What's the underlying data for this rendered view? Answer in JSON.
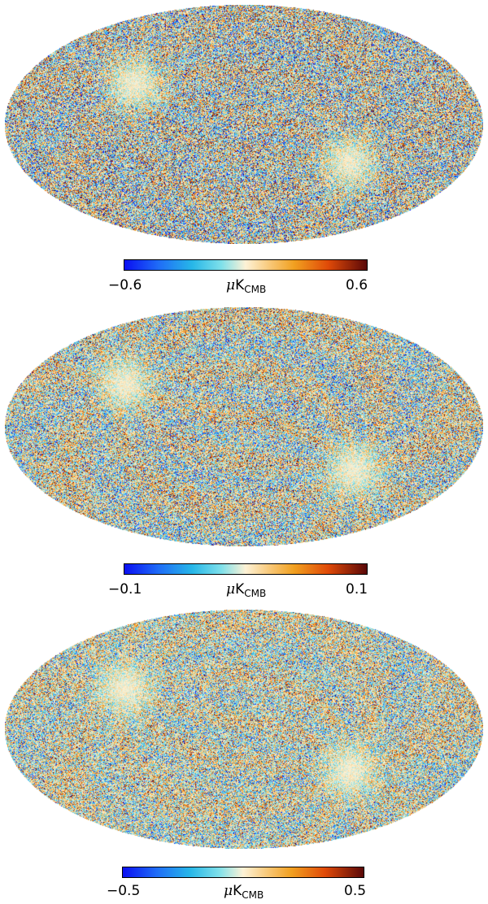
{
  "panels": [
    {
      "colorbar": {
        "min_label": "−0.6",
        "max_label": "0.6",
        "unit_prefix": "μ",
        "unit_base": "K",
        "unit_sub": "CMB",
        "min": -0.6,
        "max": 0.6
      }
    },
    {
      "colorbar": {
        "min_label": "−0.1",
        "max_label": "0.1",
        "unit_prefix": "μ",
        "unit_base": "K",
        "unit_sub": "CMB",
        "min": -0.1,
        "max": 0.1
      }
    },
    {
      "colorbar": {
        "min_label": "−0.5",
        "max_label": "0.5",
        "unit_prefix": "μ",
        "unit_base": "K",
        "unit_sub": "CMB",
        "min": -0.5,
        "max": 0.5
      }
    }
  ],
  "colormap": [
    "#0a0ff2",
    "#1f6cf7",
    "#27b7e8",
    "#7fe0ea",
    "#fdf2d6",
    "#f8c878",
    "#f1a020",
    "#e04a08",
    "#5a0808"
  ]
}
